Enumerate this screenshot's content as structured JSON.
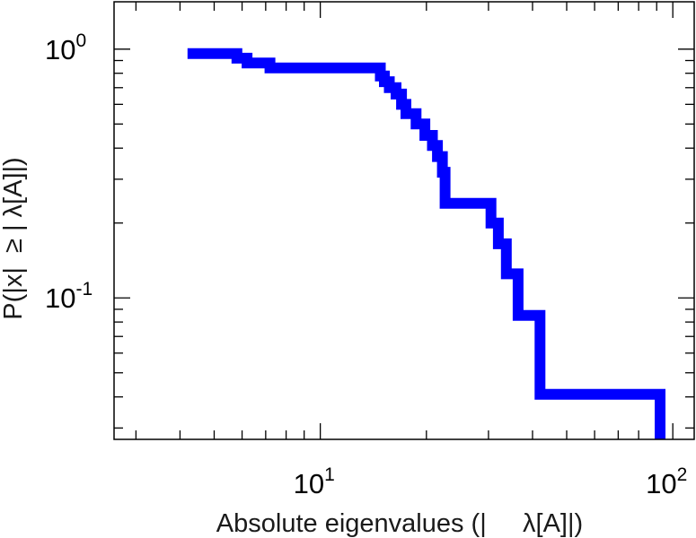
{
  "chart_data": {
    "type": "line",
    "step": true,
    "xscale": "log",
    "yscale": "log",
    "xlabel": "Absolute eigenvalues (|     λ[A]|)",
    "ylabel": "P(|x|  ≥ | λ[A]|)",
    "xlim": [
      2.6,
      115
    ],
    "ylim": [
      0.027,
      1.55
    ],
    "xticks": [
      {
        "value": 10,
        "base": "10",
        "exp": "1"
      },
      {
        "value": 100,
        "base": "10",
        "exp": "2"
      }
    ],
    "yticks": [
      {
        "value": 1,
        "base": "10",
        "exp": "0"
      },
      {
        "value": 0.1,
        "base": "10",
        "exp": "-1"
      }
    ],
    "grid": false,
    "color": "#0000ff",
    "series": [
      {
        "x": [
          4.2,
          5.8,
          5.8,
          6.2,
          6.2,
          7.2,
          7.2,
          14.8,
          14.8,
          15.2,
          15.2,
          15.7,
          15.7,
          16.4,
          16.4,
          17.0,
          17.0,
          17.5,
          17.5,
          18.7,
          18.7,
          19.8,
          19.8,
          20.8,
          20.8,
          21.5,
          21.5,
          22.2,
          22.2,
          22.6,
          22.6,
          30.5,
          30.5,
          32.0,
          32.0,
          33.7,
          33.7,
          36.4,
          36.4,
          42.0,
          42.0,
          92.0,
          92.0
        ],
        "y": [
          0.96,
          0.96,
          0.92,
          0.92,
          0.88,
          0.88,
          0.84,
          0.84,
          0.78,
          0.78,
          0.74,
          0.74,
          0.7,
          0.7,
          0.66,
          0.66,
          0.6,
          0.6,
          0.55,
          0.55,
          0.5,
          0.5,
          0.45,
          0.45,
          0.41,
          0.41,
          0.37,
          0.37,
          0.32,
          0.32,
          0.24,
          0.24,
          0.2,
          0.2,
          0.165,
          0.165,
          0.125,
          0.125,
          0.085,
          0.085,
          0.041,
          0.041,
          0.027
        ]
      }
    ]
  }
}
